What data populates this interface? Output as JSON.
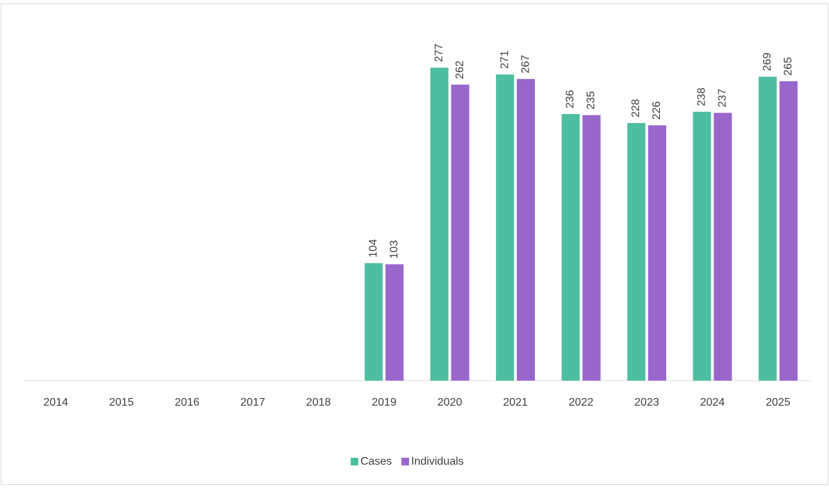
{
  "chart_data": {
    "type": "bar",
    "categories": [
      "2014",
      "2015",
      "2016",
      "2017",
      "2018",
      "2019",
      "2020",
      "2021",
      "2022",
      "2023",
      "2024",
      "2025"
    ],
    "series": [
      {
        "name": "Cases",
        "color": "#4dbfa0",
        "values": [
          null,
          null,
          null,
          null,
          null,
          104,
          277,
          271,
          236,
          228,
          238,
          269
        ]
      },
      {
        "name": "Individuals",
        "color": "#9966cc",
        "values": [
          null,
          null,
          null,
          null,
          null,
          103,
          262,
          267,
          235,
          226,
          237,
          265
        ]
      }
    ],
    "ylim": [
      0,
      300
    ],
    "legend": "bottom"
  }
}
